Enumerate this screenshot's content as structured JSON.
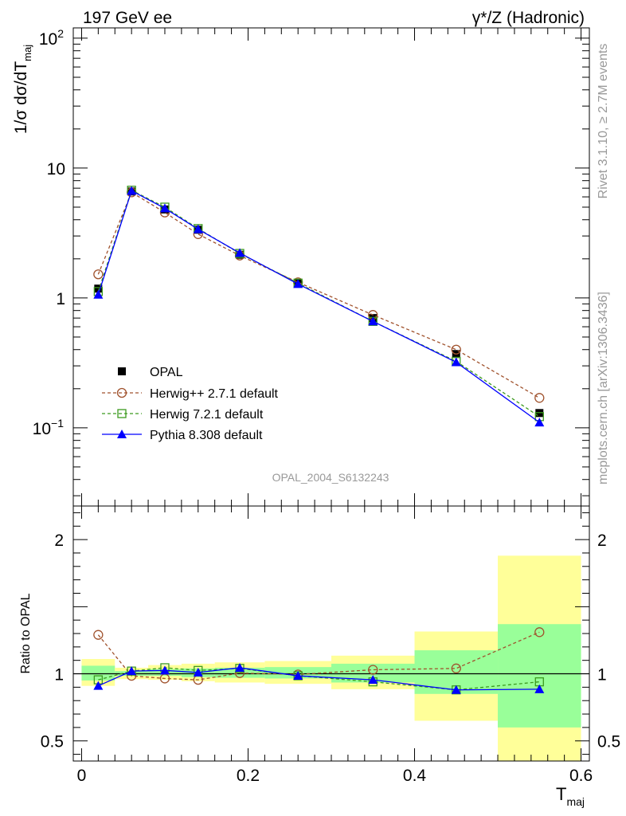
{
  "header": {
    "left": "197 GeV ee",
    "right": "γ*/Z (Hadronic)"
  },
  "side_text": {
    "rivet": "Rivet 3.1.10, ≥ 2.7M events",
    "source": "mcplots.cern.ch [arXiv:1306.3436]"
  },
  "watermark": "OPAL_2004_S6132243",
  "colors": {
    "data": "#000000",
    "herwigpp": "#a0522d",
    "herwig7": "#3c9a1e",
    "pythia": "#0000ff",
    "band_inner": "#99ff99",
    "band_outer": "#ffff99"
  },
  "chart_data": [
    {
      "type": "line",
      "panel": "main",
      "ylabel": "1/σ dσ/dT",
      "ylabel_sub": "maj",
      "yscale": "log",
      "ylim": [
        0.025,
        120
      ],
      "xlim": [
        -0.01,
        0.61
      ],
      "y_ticks": [
        {
          "value": 100,
          "label": "10",
          "sup": "2"
        },
        {
          "value": 10,
          "label": "10",
          "sup": ""
        },
        {
          "value": 1,
          "label": "1",
          "sup": ""
        },
        {
          "value": 0.1,
          "label": "10",
          "sup": "−1"
        }
      ],
      "legend_position": "center-left",
      "series": [
        {
          "name": "OPAL",
          "style": "data",
          "marker": "filled-square",
          "x": [
            0.02,
            0.06,
            0.1,
            0.14,
            0.19,
            0.26,
            0.35,
            0.45,
            0.55
          ],
          "y": [
            1.18,
            6.6,
            4.8,
            3.35,
            2.15,
            1.3,
            0.7,
            0.37,
            0.13
          ]
        },
        {
          "name": "Herwig++ 2.7.1 default",
          "style": "herwigpp",
          "marker": "open-circle",
          "x": [
            0.02,
            0.06,
            0.1,
            0.14,
            0.19,
            0.26,
            0.35,
            0.45,
            0.55
          ],
          "y": [
            1.52,
            6.5,
            4.55,
            3.1,
            2.12,
            1.32,
            0.74,
            0.4,
            0.17
          ]
        },
        {
          "name": "Herwig 7.2.1 default",
          "style": "herwig7",
          "marker": "open-square",
          "x": [
            0.02,
            0.06,
            0.1,
            0.14,
            0.19,
            0.26,
            0.35,
            0.45,
            0.55
          ],
          "y": [
            1.12,
            6.75,
            5.0,
            3.42,
            2.2,
            1.3,
            0.66,
            0.325,
            0.122
          ]
        },
        {
          "name": "Pythia 8.308 default",
          "style": "pythia",
          "marker": "filled-triangle",
          "x": [
            0.02,
            0.06,
            0.1,
            0.14,
            0.19,
            0.26,
            0.35,
            0.45,
            0.55
          ],
          "y": [
            1.06,
            6.68,
            4.9,
            3.38,
            2.22,
            1.28,
            0.66,
            0.32,
            0.11
          ]
        }
      ]
    },
    {
      "type": "line",
      "panel": "ratio",
      "ylabel": "Ratio to OPAL",
      "xlabel": "T",
      "xlabel_sub": "maj",
      "ylim": [
        0.35,
        2.25
      ],
      "xlim": [
        -0.01,
        0.61
      ],
      "y_ticks": [
        {
          "value": 2,
          "label": "2"
        },
        {
          "value": 1,
          "label": "1"
        },
        {
          "value": 0.5,
          "label": "0.5"
        }
      ],
      "x_ticks": [
        {
          "value": 0,
          "label": "0"
        },
        {
          "value": 0.2,
          "label": "0.2"
        },
        {
          "value": 0.4,
          "label": "0.4"
        },
        {
          "value": 0.6,
          "label": "0.6"
        }
      ],
      "bands": {
        "x_edges": [
          0.0,
          0.04,
          0.08,
          0.12,
          0.16,
          0.22,
          0.3,
          0.4,
          0.5,
          0.6
        ],
        "inner_lo": [
          0.95,
          0.985,
          0.985,
          0.975,
          0.97,
          0.965,
          0.935,
          0.85,
          0.6
        ],
        "inner_hi": [
          1.06,
          1.02,
          1.035,
          1.04,
          1.045,
          1.05,
          1.075,
          1.175,
          1.37
        ],
        "outer_lo": [
          0.91,
          0.96,
          0.955,
          0.945,
          0.935,
          0.925,
          0.885,
          0.65,
          0.35
        ],
        "outer_hi": [
          1.11,
          1.045,
          1.065,
          1.075,
          1.085,
          1.095,
          1.135,
          1.315,
          1.88
        ]
      },
      "series": [
        {
          "name": "Herwig++ 2.7.1 default",
          "style": "herwigpp",
          "marker": "open-circle",
          "x": [
            0.02,
            0.06,
            0.1,
            0.14,
            0.19,
            0.26,
            0.35,
            0.45,
            0.55
          ],
          "y": [
            1.29,
            0.985,
            0.965,
            0.955,
            1.005,
            0.995,
            1.03,
            1.04,
            1.31
          ]
        },
        {
          "name": "Herwig 7.2.1 default",
          "style": "herwig7",
          "marker": "open-square",
          "x": [
            0.02,
            0.06,
            0.1,
            0.14,
            0.19,
            0.26,
            0.35,
            0.45,
            0.55
          ],
          "y": [
            0.955,
            1.02,
            1.045,
            1.025,
            1.04,
            0.985,
            0.94,
            0.88,
            0.94
          ]
        },
        {
          "name": "Pythia 8.308 default",
          "style": "pythia",
          "marker": "filled-triangle",
          "x": [
            0.02,
            0.06,
            0.1,
            0.14,
            0.19,
            0.26,
            0.35,
            0.45,
            0.55
          ],
          "y": [
            0.91,
            1.02,
            1.025,
            1.01,
            1.045,
            0.985,
            0.955,
            0.88,
            0.885
          ]
        }
      ]
    }
  ]
}
